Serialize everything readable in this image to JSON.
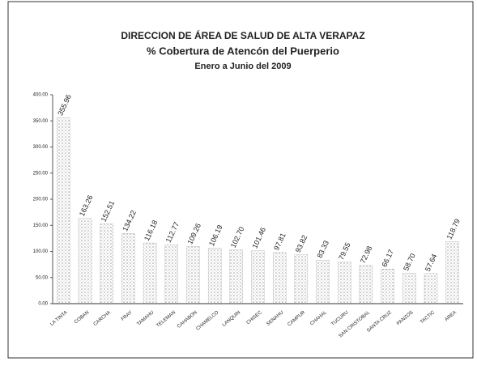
{
  "chart_data": {
    "type": "bar",
    "title": [
      "DIRECCION DE ÁREA DE SALUD DE ALTA VERAPAZ",
      "% Cobertura de Atencón del Puerperio",
      "Enero a Junio  del 2009"
    ],
    "categories": [
      "LA TINTA",
      "COBAN",
      "CARCHA",
      "FRAY",
      "TAMAHU",
      "TELEMAN",
      "CAHABON",
      "CHAMELCO",
      "LANQUIN",
      "CHISEC",
      "SENAHU",
      "CAMPUR",
      "CHAHAL",
      "TUCURU",
      "SAN CRISTOBAL",
      "SANTA CRUZ",
      "PANZOS",
      "TACTIC",
      "AREA"
    ],
    "values": [
      355.96,
      163.26,
      152.51,
      134.22,
      116.18,
      112.77,
      109.26,
      106.19,
      102.7,
      101.46,
      97.81,
      93.82,
      83.33,
      79.55,
      72.98,
      66.17,
      58.7,
      57.64,
      118.79
    ],
    "value_labels": [
      "355.96",
      "163.26",
      "152.51",
      "134.22",
      "116.18",
      "112.77",
      "109.26",
      "106.19",
      "102.70",
      "101.46",
      "97.81",
      "93.82",
      "83.33",
      "79.55",
      "72.98",
      "66.17",
      "58.70",
      "57.64",
      "118.79"
    ],
    "color": "#9a9a9a",
    "ylim": [
      0,
      400
    ],
    "yticks": [
      {
        "value": 0,
        "label": "0.00"
      },
      {
        "value": 50,
        "label": "50.00"
      },
      {
        "value": 100,
        "label": "100.00"
      },
      {
        "value": 150,
        "label": "150.00"
      },
      {
        "value": 200,
        "label": "200.00"
      },
      {
        "value": 250,
        "label": "250.00"
      },
      {
        "value": 300,
        "label": "300.00"
      },
      {
        "value": 350,
        "label": "350.00"
      },
      {
        "value": 400,
        "label": "400.00"
      }
    ]
  }
}
